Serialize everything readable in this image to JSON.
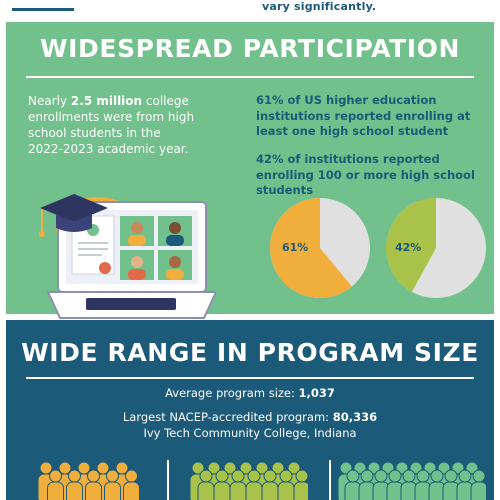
{
  "top": {
    "note": "vary significantly."
  },
  "participation": {
    "title": "WIDESPREAD PARTICIPATION",
    "left_prefix": "Nearly ",
    "left_highlight": "2.5 million",
    "left_suffix": " college enrollments were from high school students in the 2022-2023 academic year.",
    "stat1": "61% of US higher education institutions reported enrolling at least one high school student",
    "stat2": "42% of institutions reported enrolling 100 or more high school students",
    "pies": [
      {
        "label": "61%",
        "value": 61,
        "color": "#f0ae3c"
      },
      {
        "label": "42%",
        "value": 42,
        "color": "#a9c24a"
      }
    ],
    "pie_rest_color": "#e0e0e0"
  },
  "program_size": {
    "title": "WIDE RANGE IN PROGRAM SIZE",
    "avg_label": "Average program size: ",
    "avg_value": "1,037",
    "largest_label": "Largest NACEP-accredited program: ",
    "largest_value": "80,336",
    "largest_name": "Ivy Tech Community College, Indiana",
    "crowd_colors": [
      "#f0ae3c",
      "#a9c24a",
      "#72c08b"
    ]
  }
}
